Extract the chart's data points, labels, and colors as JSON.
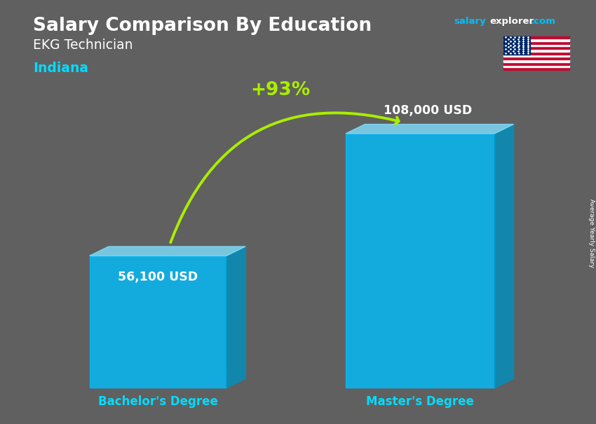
{
  "title_main": "Salary Comparison By Education",
  "site_salary": "salary",
  "site_explorer": "explorer",
  "site_com": ".com",
  "subtitle": "EKG Technician",
  "location": "Indiana",
  "categories": [
    "Bachelor's Degree",
    "Master's Degree"
  ],
  "values": [
    56100,
    108000
  ],
  "labels": [
    "56,100 USD",
    "108,000 USD"
  ],
  "pct_change": "+93%",
  "bar_color_front": "#00BFFF",
  "bar_color_top": "#80DFFF",
  "bar_color_side": "#0090C0",
  "bg_color": "#606060",
  "title_color": "#ffffff",
  "subtitle_color": "#ffffff",
  "location_color": "#00DDFF",
  "label_color": "#ffffff",
  "xticklabel_color": "#00DDFF",
  "pct_color": "#AAEE00",
  "arrow_color": "#AAEE00",
  "site_salary_color": "#00BFFF",
  "site_explorer_color": "#ffffff",
  "site_com_color": "#00BFFF",
  "figsize": [
    8.5,
    6.06
  ],
  "dpi": 100
}
